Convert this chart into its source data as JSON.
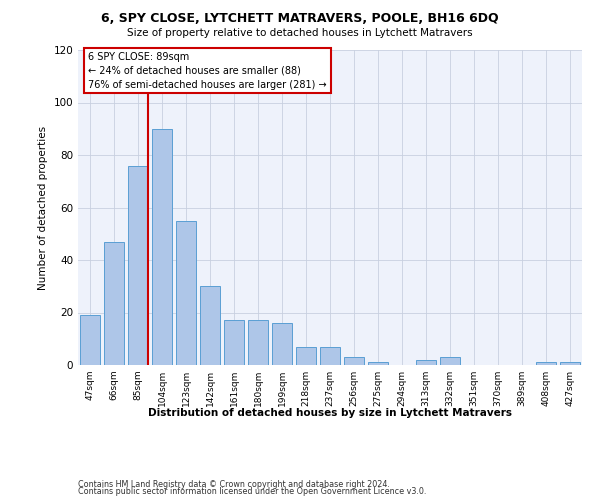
{
  "title": "6, SPY CLOSE, LYTCHETT MATRAVERS, POOLE, BH16 6DQ",
  "subtitle": "Size of property relative to detached houses in Lytchett Matravers",
  "xlabel": "Distribution of detached houses by size in Lytchett Matravers",
  "ylabel": "Number of detached properties",
  "categories": [
    "47sqm",
    "66sqm",
    "85sqm",
    "104sqm",
    "123sqm",
    "142sqm",
    "161sqm",
    "180sqm",
    "199sqm",
    "218sqm",
    "237sqm",
    "256sqm",
    "275sqm",
    "294sqm",
    "313sqm",
    "332sqm",
    "351sqm",
    "370sqm",
    "389sqm",
    "408sqm",
    "427sqm"
  ],
  "values": [
    19,
    47,
    76,
    90,
    55,
    30,
    17,
    17,
    16,
    7,
    7,
    3,
    1,
    0,
    2,
    3,
    0,
    0,
    0,
    1,
    1
  ],
  "bar_color": "#aec6e8",
  "bar_edge_color": "#5a9fd4",
  "marker_label": "6 SPY CLOSE: 89sqm",
  "annotation_line1": "← 24% of detached houses are smaller (88)",
  "annotation_line2": "76% of semi-detached houses are larger (281) →",
  "annotation_box_color": "#ffffff",
  "annotation_box_edge_color": "#cc0000",
  "red_line_color": "#cc0000",
  "ylim": [
    0,
    120
  ],
  "yticks": [
    0,
    20,
    40,
    60,
    80,
    100,
    120
  ],
  "grid_color": "#c8d0e0",
  "bg_color": "#eef2fb",
  "footer1": "Contains HM Land Registry data © Crown copyright and database right 2024.",
  "footer2": "Contains public sector information licensed under the Open Government Licence v3.0."
}
